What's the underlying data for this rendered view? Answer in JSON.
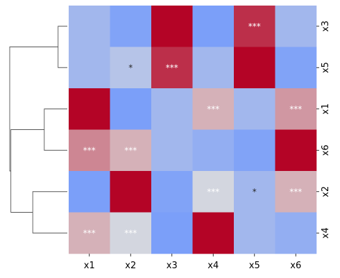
{
  "chart_data": {
    "type": "heatmap",
    "x_categories": [
      "x1",
      "x2",
      "x3",
      "x4",
      "x5",
      "x6"
    ],
    "y_categories": [
      "x3",
      "x5",
      "x1",
      "x6",
      "x2",
      "x4"
    ],
    "values": [
      [
        0.2,
        0.03,
        1.0,
        0.0,
        0.9,
        0.2
      ],
      [
        0.2,
        0.3,
        0.9,
        0.2,
        1.0,
        0.03
      ],
      [
        1.0,
        0.0,
        0.2,
        0.6,
        0.2,
        0.66
      ],
      [
        0.7,
        0.6,
        0.2,
        0.12,
        0.03,
        1.0
      ],
      [
        0.0,
        1.0,
        0.03,
        0.45,
        0.2,
        0.6
      ],
      [
        0.6,
        0.45,
        0.0,
        1.0,
        0.2,
        0.12
      ]
    ],
    "significance": [
      [
        "",
        "",
        "",
        "",
        "***",
        ""
      ],
      [
        "",
        "*",
        "***",
        "",
        "",
        ""
      ],
      [
        "",
        "",
        "",
        "***",
        "",
        "***"
      ],
      [
        "***",
        "***",
        "",
        "",
        "",
        ""
      ],
      [
        "",
        "",
        "",
        "***",
        "*",
        "***"
      ],
      [
        "***",
        "***",
        "",
        "",
        "",
        ""
      ]
    ],
    "dendrogram": {
      "leaves": [
        "x3",
        "x5",
        "x1",
        "x6",
        "x2",
        "x4"
      ],
      "merges": [
        {
          "left": "x3",
          "right": "x5",
          "height": 0.16
        },
        {
          "left": "x1",
          "right": "x6",
          "height": 0.4
        },
        {
          "left": "x2",
          "right": "x4",
          "height": 0.6
        },
        {
          "left": "m1",
          "right": "m2",
          "height": 0.98
        },
        {
          "left": "m3",
          "right": "m0",
          "height": 1.0
        }
      ]
    },
    "colormap": "coolwarm",
    "colors": {
      "low": "#7b9ff9",
      "mid": "#dddcdc",
      "high": "#b40426",
      "label_dark": "#262626",
      "label_light": "#ffffff",
      "dendrogram_line": "#555555"
    },
    "ylabel_side": "right"
  }
}
